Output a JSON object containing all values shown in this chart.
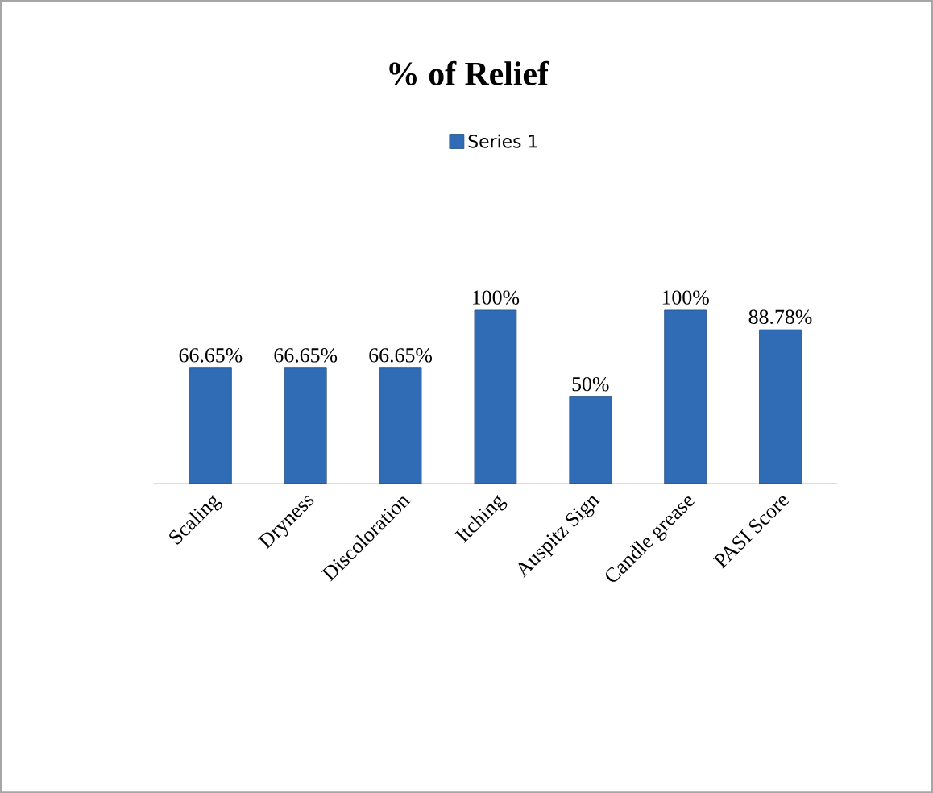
{
  "chart_data": {
    "type": "bar",
    "title": "% of Relief",
    "categories": [
      "Scaling",
      "Dryness",
      "Discoloration",
      "Itching",
      "Auspitz Sign",
      "Candle grease",
      "PASI Score"
    ],
    "series": [
      {
        "name": "Series 1",
        "color": "#2f6cb5",
        "values": [
          66.65,
          66.65,
          66.65,
          100,
          50,
          100,
          88.78
        ],
        "value_labels": [
          "66.65%",
          "66.65%",
          "66.65%",
          "100%",
          "50%",
          "100%",
          "88.78%"
        ]
      }
    ],
    "legend": "top"
  }
}
